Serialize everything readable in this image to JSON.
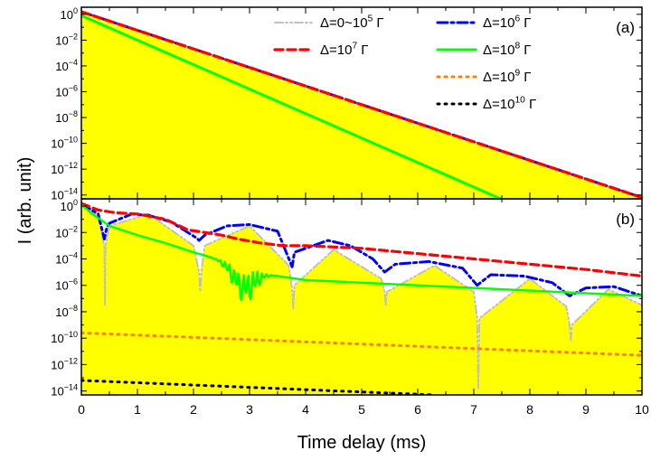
{
  "chart_data": {
    "type": "line",
    "xlabel": "Time delay (ms)",
    "ylabel": "I (arb. unit)",
    "xlim": [
      0,
      10
    ],
    "x_ticks": [
      "0",
      "1",
      "2",
      "3",
      "4",
      "5",
      "6",
      "7",
      "8",
      "9",
      "10"
    ],
    "shared_x_axis": true,
    "grid": false,
    "panels": [
      {
        "label": "(a)",
        "y_scale": "log",
        "ylim_exp": [
          -14.3,
          0.55
        ],
        "y_tick_exps": [
          0,
          -2,
          -4,
          -6,
          -8,
          -10,
          -12,
          -14
        ],
        "fill_under_series": "Δ=0~10^5 Γ",
        "series": [
          {
            "name": "Δ=0~10^5 Γ",
            "style": "dash-dot-dot",
            "color": "#c0c0c0",
            "x": [
              0,
              10
            ],
            "log10_y": [
              0.2,
              -14.2
            ]
          },
          {
            "name": "Δ=10^6 Γ",
            "style": "dash-dot",
            "color": "#0000ff",
            "x": [
              0,
              10
            ],
            "log10_y": [
              0.2,
              -14.2
            ]
          },
          {
            "name": "Δ=10^7 Γ",
            "style": "dash",
            "color": "#ff0000",
            "x": [
              0,
              10
            ],
            "log10_y": [
              0.2,
              -14.2
            ]
          },
          {
            "name": "Δ=10^8 Γ",
            "style": "solid",
            "color": "#00ff00",
            "x": [
              0,
              7.48
            ],
            "log10_y": [
              -0.1,
              -14.3
            ]
          }
        ]
      },
      {
        "label": "(b)",
        "y_scale": "log",
        "ylim_exp": [
          -14.3,
          0.55
        ],
        "y_tick_exps": [
          0,
          -2,
          -4,
          -6,
          -8,
          -10,
          -12,
          -14
        ],
        "fill_under_series": "Δ=0~10^5 Γ",
        "series": [
          {
            "name": "Δ=0~10^5 Γ",
            "style": "dash-dot-dot",
            "color": "#c0c0c0",
            "x": [
              0,
              0.3,
              0.41,
              0.42,
              0.43,
              0.5,
              1.2,
              2.0,
              2.1,
              2.12,
              2.14,
              2.2,
              3.0,
              3.7,
              3.76,
              3.78,
              3.8,
              4.5,
              5.35,
              5.41,
              5.43,
              5.45,
              6.3,
              7.0,
              7.06,
              7.08,
              7.1,
              8.0,
              8.65,
              8.71,
              8.73,
              8.75,
              9.4,
              10
            ],
            "log10_y": [
              0.1,
              -0.8,
              -3.0,
              -7.5,
              -3.0,
              -1.5,
              -0.6,
              -3.0,
              -5.0,
              -6.5,
              -5.0,
              -3.0,
              -1.5,
              -4.5,
              -6.3,
              -7.8,
              -6.0,
              -3.3,
              -5.5,
              -6.5,
              -7.5,
              -6.5,
              -4.5,
              -6.5,
              -8.5,
              -13.8,
              -8.5,
              -5.5,
              -7.6,
              -9.0,
              -10.2,
              -9.0,
              -6.3,
              -7.5
            ]
          },
          {
            "name": "Δ=10^6 Γ",
            "style": "dash-dot",
            "color": "#0000ff",
            "x": [
              0,
              0.3,
              0.41,
              0.45,
              0.5,
              0.9,
              1.2,
              1.6,
              2.05,
              2.1,
              2.2,
              2.6,
              3.0,
              3.5,
              3.76,
              3.8,
              4.4,
              4.8,
              5.2,
              5.41,
              5.6,
              6.2,
              6.8,
              7.06,
              7.3,
              7.9,
              8.4,
              8.71,
              9.0,
              9.5,
              10
            ],
            "log10_y": [
              0.2,
              -0.6,
              -2.5,
              -1.7,
              -1.3,
              -0.6,
              -0.7,
              -1.2,
              -2.4,
              -2.6,
              -2.2,
              -1.5,
              -1.4,
              -1.9,
              -4.6,
              -3.5,
              -2.6,
              -3.0,
              -4.0,
              -5.0,
              -4.4,
              -4.2,
              -4.7,
              -6.0,
              -5.2,
              -5.3,
              -5.8,
              -6.8,
              -6.2,
              -6.1,
              -6.8
            ]
          },
          {
            "name": "Δ=10^7 Γ",
            "style": "dash",
            "color": "#ff0000",
            "x": [
              0,
              0.3,
              0.6,
              1.0,
              1.5,
              1.9,
              2.2,
              2.5,
              2.8,
              3.2,
              3.6,
              4.0,
              5.0,
              6.0,
              7.0,
              8.0,
              9.0,
              10
            ],
            "log10_y": [
              0.2,
              -0.3,
              -0.5,
              -0.6,
              -1.0,
              -1.8,
              -2.0,
              -2.2,
              -2.5,
              -2.8,
              -3.0,
              -3.0,
              -3.2,
              -3.6,
              -4.0,
              -4.4,
              -4.8,
              -5.3
            ]
          },
          {
            "name": "Δ=10^8 Γ",
            "style": "solid",
            "color": "#00ff00",
            "x": [
              0,
              0.2,
              0.5,
              1.0,
              1.5,
              2.0,
              2.5,
              3.0,
              3.5,
              4.0,
              5.0,
              6.0,
              7.0,
              8.0,
              9.0,
              10
            ],
            "log10_y": [
              0.1,
              -0.6,
              -1.5,
              -2.2,
              -2.8,
              -3.5,
              -4.1,
              -4.8,
              -5.3,
              -5.6,
              -5.8,
              -6.0,
              -6.2,
              -6.4,
              -6.6,
              -6.8
            ],
            "oscillation": {
              "x_range": [
                1.9,
                3.5
              ],
              "center": 2.9,
              "max_amplitude_decades": 2.6
            }
          },
          {
            "name": "Δ=10^9 Γ",
            "style": "dot",
            "color": "#ff8000",
            "x": [
              0,
              10
            ],
            "log10_y": [
              -9.6,
              -11.3
            ]
          },
          {
            "name": "Δ=10^10 Γ",
            "style": "dot",
            "color": "#000000",
            "x": [
              0,
              6.3
            ],
            "log10_y": [
              -13.2,
              -14.3
            ]
          }
        ]
      }
    ],
    "legend": {
      "placement": "top-right of panel (a)",
      "entries": [
        {
          "label": "Δ=0~10^5 Γ",
          "color": "#c0c0c0",
          "style": "dash-dot-dot"
        },
        {
          "label": "Δ=10^6 Γ",
          "color": "#0000ff",
          "style": "dash-dot"
        },
        {
          "label": "Δ=10^7 Γ",
          "color": "#ff0000",
          "style": "dash"
        },
        {
          "label": "Δ=10^8 Γ",
          "color": "#00ff00",
          "style": "solid"
        },
        {
          "label": "Δ=10^9 Γ",
          "color": "#ff8000",
          "style": "dot"
        },
        {
          "label": "Δ=10^10 Γ",
          "color": "#000000",
          "style": "dot"
        }
      ]
    },
    "colors": {
      "fill": "#ffff00",
      "frame": "#000000"
    }
  }
}
